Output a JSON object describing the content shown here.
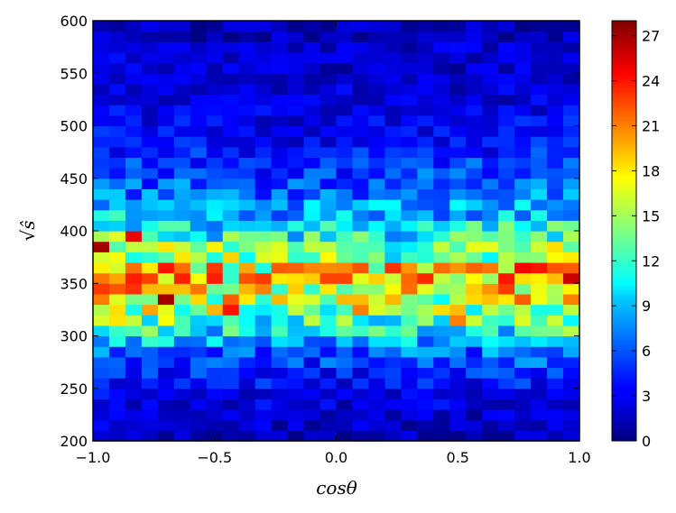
{
  "chart_data": {
    "type": "heatmap",
    "title": "",
    "xlabel": "cosθ",
    "ylabel": "√ŝ",
    "xlim": [
      -1.0,
      1.0
    ],
    "ylim": [
      200,
      600
    ],
    "x_bins": 30,
    "y_bins": 40,
    "x_ticks": [
      "−1.0",
      "−0.5",
      "0.0",
      "0.5",
      "1.0"
    ],
    "y_ticks": [
      "200",
      "250",
      "300",
      "350",
      "400",
      "450",
      "500",
      "550",
      "600"
    ],
    "colorbar": {
      "range": [
        0,
        28
      ],
      "ticks": [
        "0",
        "3",
        "6",
        "9",
        "12",
        "15",
        "18",
        "21",
        "24",
        "27"
      ],
      "colormap": "jet"
    },
    "grid": false,
    "value_profile_by_y_center": [
      {
        "y": 205,
        "mean": 1.5
      },
      {
        "y": 215,
        "mean": 2
      },
      {
        "y": 225,
        "mean": 2
      },
      {
        "y": 235,
        "mean": 2.5
      },
      {
        "y": 245,
        "mean": 3
      },
      {
        "y": 255,
        "mean": 3.5
      },
      {
        "y": 265,
        "mean": 4
      },
      {
        "y": 275,
        "mean": 5
      },
      {
        "y": 285,
        "mean": 6
      },
      {
        "y": 295,
        "mean": 8
      },
      {
        "y": 305,
        "mean": 10
      },
      {
        "y": 315,
        "mean": 12
      },
      {
        "y": 325,
        "mean": 14
      },
      {
        "y": 335,
        "mean": 15
      },
      {
        "y": 345,
        "mean": 16
      },
      {
        "y": 355,
        "mean": 17
      },
      {
        "y": 365,
        "mean": 17
      },
      {
        "y": 375,
        "mean": 14
      },
      {
        "y": 385,
        "mean": 13
      },
      {
        "y": 395,
        "mean": 11
      },
      {
        "y": 405,
        "mean": 9.5
      },
      {
        "y": 415,
        "mean": 8
      },
      {
        "y": 425,
        "mean": 7.5
      },
      {
        "y": 435,
        "mean": 6
      },
      {
        "y": 445,
        "mean": 5.5
      },
      {
        "y": 455,
        "mean": 5
      },
      {
        "y": 465,
        "mean": 4.5
      },
      {
        "y": 475,
        "mean": 4
      },
      {
        "y": 485,
        "mean": 3.5
      },
      {
        "y": 495,
        "mean": 3
      },
      {
        "y": 505,
        "mean": 3
      },
      {
        "y": 515,
        "mean": 2.5
      },
      {
        "y": 525,
        "mean": 2.5
      },
      {
        "y": 535,
        "mean": 2.5
      },
      {
        "y": 545,
        "mean": 2
      },
      {
        "y": 555,
        "mean": 2
      },
      {
        "y": 565,
        "mean": 2
      },
      {
        "y": 575,
        "mean": 2
      },
      {
        "y": 585,
        "mean": 1.5
      },
      {
        "y": 595,
        "mean": 1.5
      }
    ],
    "hot_cells": [
      {
        "x": -0.98,
        "y": 385,
        "value": 27
      },
      {
        "x": -0.98,
        "y": 345,
        "value": 23
      },
      {
        "x": -0.86,
        "y": 395,
        "value": 25
      },
      {
        "x": -0.71,
        "y": 365,
        "value": 24
      },
      {
        "x": -0.71,
        "y": 335,
        "value": 27
      },
      {
        "x": -0.5,
        "y": 365,
        "value": 23
      },
      {
        "x": -0.46,
        "y": 335,
        "value": 22
      },
      {
        "x": -0.43,
        "y": 325,
        "value": 24
      },
      {
        "x": -0.38,
        "y": 365,
        "value": 20
      },
      {
        "x": 0.1,
        "y": 325,
        "value": 21
      },
      {
        "x": 0.5,
        "y": 315,
        "value": 21
      },
      {
        "x": 0.76,
        "y": 335,
        "value": 22
      },
      {
        "x": 0.83,
        "y": 365,
        "value": 24
      },
      {
        "x": 0.96,
        "y": 365,
        "value": 22
      },
      {
        "x": 0.96,
        "y": 355,
        "value": 26
      },
      {
        "x": 0.96,
        "y": 335,
        "value": 21
      }
    ]
  }
}
